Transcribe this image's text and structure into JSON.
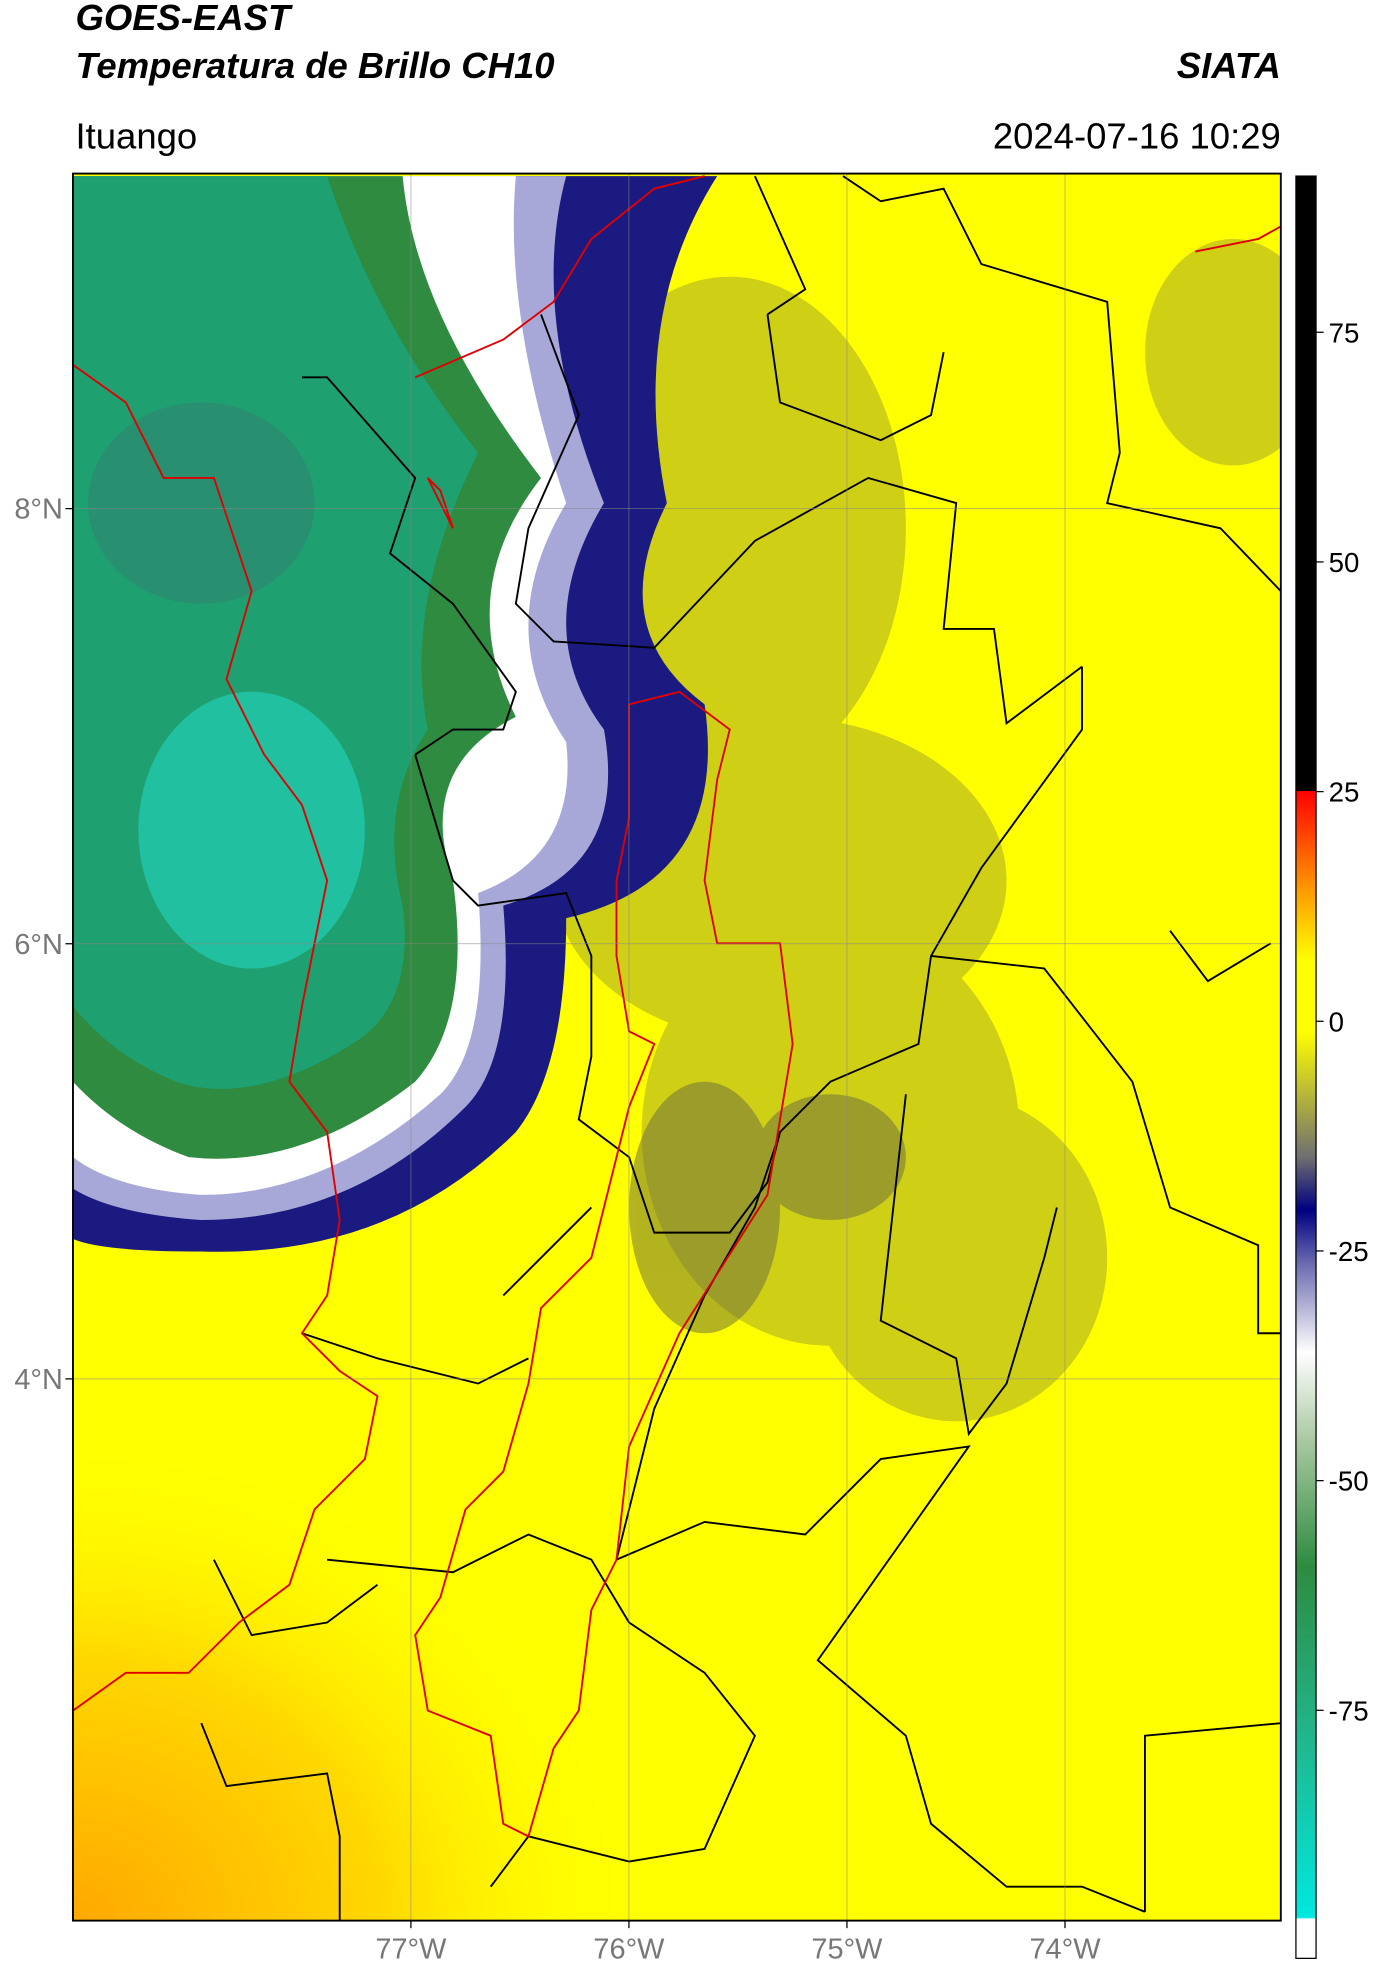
{
  "header": {
    "title": "GOES-EAST",
    "subtitle": "Temperatura de Brillo CH10",
    "organization": "SIATA",
    "location": "Ituango",
    "datetime": "2024-07-16 10:29"
  },
  "map": {
    "xlim": [
      -78.55,
      -73.01
    ],
    "ylim": [
      1.51,
      9.54
    ],
    "xticks": [
      {
        "value": -77,
        "label": "77°W"
      },
      {
        "value": -76,
        "label": "76°W"
      },
      {
        "value": -75,
        "label": "75°W"
      },
      {
        "value": -74,
        "label": "74°W"
      }
    ],
    "yticks": [
      {
        "value": 4,
        "label": "4°N"
      },
      {
        "value": 6,
        "label": "6°N"
      },
      {
        "value": 8,
        "label": "8°N"
      }
    ],
    "grid": true
  },
  "colorbar": {
    "lim": [
      -102,
      92
    ],
    "ticks": [
      -75,
      -50,
      -25,
      0,
      25,
      50,
      75
    ]
  }
}
